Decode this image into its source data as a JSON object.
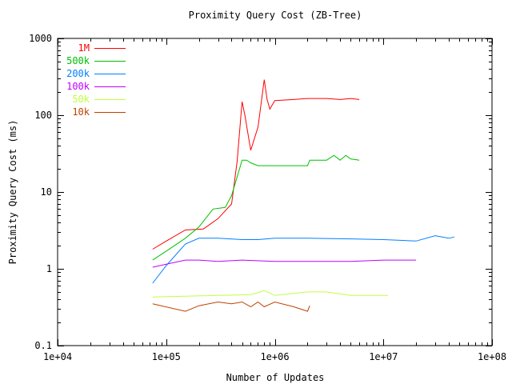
{
  "chart_data": {
    "type": "line",
    "title": "Proximity Query Cost (ZB-Tree)",
    "xlabel": "Number of Updates",
    "ylabel": "Proximity Query Cost (ms)",
    "xscale": "log",
    "yscale": "log",
    "xlim": [
      10000,
      100000000
    ],
    "ylim": [
      0.1,
      1000
    ],
    "x_ticks": [
      "1e+04",
      "1e+05",
      "1e+06",
      "1e+07",
      "1e+08"
    ],
    "y_ticks": [
      "0.1",
      "1",
      "10",
      "100",
      "1000"
    ],
    "grid": false,
    "legend_position": "top-left",
    "series": [
      {
        "name": "1M",
        "color": "#ff0000",
        "x": [
          75000,
          100000,
          150000,
          220000,
          300000,
          400000,
          450000,
          500000,
          530000,
          600000,
          700000,
          800000,
          850000,
          900000,
          1000000,
          1500000,
          2000000,
          3000000,
          4000000,
          5000000,
          6000000
        ],
        "y": [
          1.8,
          2.3,
          3.2,
          3.3,
          4.5,
          7,
          25,
          150,
          100,
          35,
          70,
          290,
          160,
          120,
          155,
          160,
          165,
          165,
          160,
          165,
          160
        ]
      },
      {
        "name": "500k",
        "color": "#00c000",
        "x": [
          75000,
          100000,
          150000,
          200000,
          270000,
          350000,
          400000,
          500000,
          550000,
          600000,
          700000,
          1000000,
          1500000,
          2000000,
          2100000,
          3000000,
          3500000,
          4000000,
          4500000,
          5000000,
          6000000
        ],
        "y": [
          1.3,
          1.7,
          2.5,
          3.5,
          6,
          6.3,
          9,
          26,
          26,
          24,
          22,
          22,
          22,
          22,
          26,
          26,
          30,
          26,
          30,
          27,
          26
        ]
      },
      {
        "name": "200k",
        "color": "#0080ff",
        "x": [
          75000,
          100000,
          150000,
          200000,
          300000,
          500000,
          700000,
          1000000,
          2000000,
          5000000,
          10000000,
          20000000,
          30000000,
          40000000,
          45000000
        ],
        "y": [
          0.65,
          1.1,
          2.1,
          2.5,
          2.5,
          2.4,
          2.4,
          2.5,
          2.5,
          2.45,
          2.4,
          2.3,
          2.7,
          2.5,
          2.6
        ]
      },
      {
        "name": "100k",
        "color": "#c000ff",
        "x": [
          75000,
          100000,
          150000,
          200000,
          300000,
          500000,
          1000000,
          2000000,
          5000000,
          10000000,
          20000000
        ],
        "y": [
          1.05,
          1.15,
          1.3,
          1.3,
          1.25,
          1.3,
          1.25,
          1.25,
          1.25,
          1.3,
          1.3
        ]
      },
      {
        "name": "50k",
        "color": "#c0ff40",
        "x": [
          75000,
          150000,
          300000,
          600000,
          800000,
          1000000,
          2000000,
          3000000,
          5000000,
          8000000,
          11000000
        ],
        "y": [
          0.43,
          0.44,
          0.45,
          0.46,
          0.52,
          0.45,
          0.5,
          0.5,
          0.45,
          0.45,
          0.45
        ]
      },
      {
        "name": "10k",
        "color": "#c04000",
        "x": [
          75000,
          150000,
          200000,
          300000,
          400000,
          500000,
          600000,
          700000,
          800000,
          1000000,
          1500000,
          2000000,
          2100000
        ],
        "y": [
          0.35,
          0.28,
          0.33,
          0.37,
          0.35,
          0.37,
          0.32,
          0.37,
          0.32,
          0.37,
          0.32,
          0.28,
          0.33
        ]
      }
    ]
  }
}
